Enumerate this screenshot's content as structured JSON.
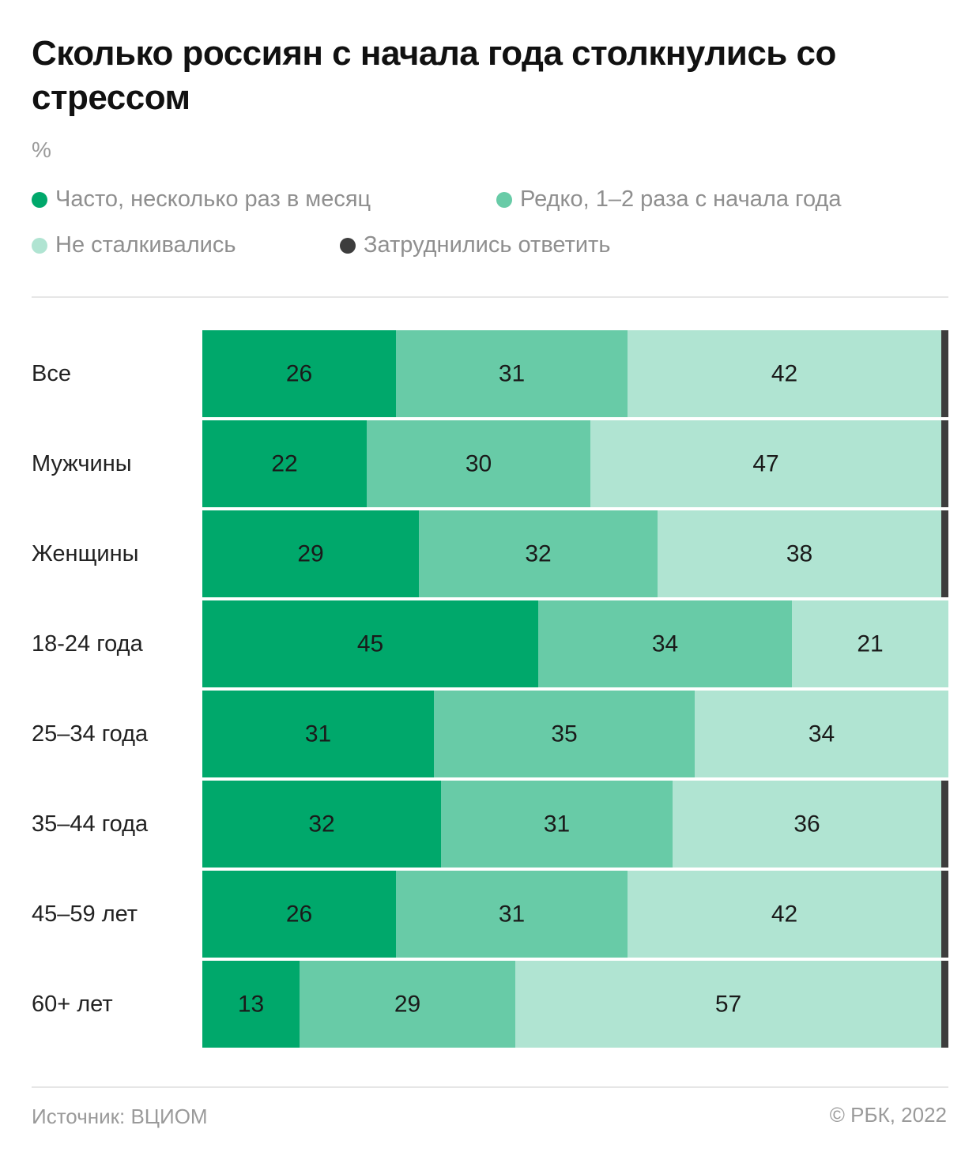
{
  "title": "Сколько россиян с начала года столкнулись со стрессом",
  "unit": "%",
  "legend": [
    {
      "label": "Часто, несколько раз в месяц",
      "color": "#00a86b"
    },
    {
      "label": "Редко, 1–2 раза с начала года",
      "color": "#68cba7"
    },
    {
      "label": "Не сталкивались",
      "color": "#b0e4d2"
    },
    {
      "label": "Затруднились ответить",
      "color": "#3d3d3d"
    }
  ],
  "chart_data": {
    "type": "bar",
    "orientation": "horizontal",
    "stacked": true,
    "categories": [
      "Все",
      "Мужчины",
      "Женщины",
      "18-24 года",
      "25–34 года",
      "35–44 года",
      "45–59 лет",
      "60+ лет"
    ],
    "series": [
      {
        "name": "Часто, несколько раз в месяц",
        "color": "#00a86b",
        "values": [
          26,
          22,
          29,
          45,
          31,
          32,
          26,
          13
        ]
      },
      {
        "name": "Редко, 1–2 раза с начала года",
        "color": "#68cba7",
        "values": [
          31,
          30,
          32,
          34,
          35,
          31,
          31,
          29
        ]
      },
      {
        "name": "Не сталкивались",
        "color": "#b0e4d2",
        "values": [
          42,
          47,
          38,
          21,
          34,
          36,
          42,
          57
        ]
      },
      {
        "name": "Затруднились ответить",
        "color": "#3d3d3d",
        "values": [
          1,
          1,
          1,
          0,
          0,
          1,
          1,
          1
        ]
      }
    ],
    "xlim": [
      0,
      100
    ],
    "show_labels_for_series": [
      0,
      1,
      2
    ]
  },
  "footer": {
    "source": "Источник: ВЦИОМ",
    "copyright": "© РБК, 2022"
  }
}
